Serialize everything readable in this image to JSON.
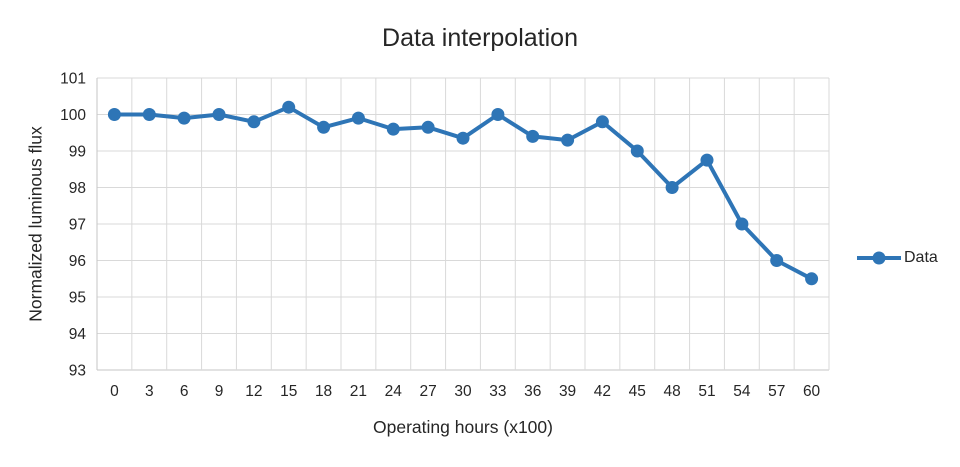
{
  "chart_data": {
    "type": "line",
    "title": "Data interpolation",
    "xlabel": "Operating hours (x100)",
    "ylabel": "Normalized luminous flux",
    "categories": [
      0,
      3,
      6,
      9,
      12,
      15,
      18,
      21,
      24,
      27,
      30,
      33,
      36,
      39,
      42,
      45,
      48,
      51,
      54,
      57,
      60
    ],
    "series": [
      {
        "name": "Data",
        "values": [
          100,
          100,
          99.9,
          100,
          99.8,
          100.2,
          99.65,
          99.9,
          99.6,
          99.65,
          99.35,
          100,
          99.4,
          99.3,
          99.8,
          99,
          98,
          98.75,
          97,
          96,
          95.5
        ]
      }
    ],
    "ylim": [
      93,
      101
    ],
    "ytick_step": 1,
    "grid": true,
    "legend_position": "right",
    "colors": {
      "series_line": "#2E75B6",
      "gridline": "#D9D9D9",
      "axis_line": "#C6C6C6",
      "text": "#262626",
      "background": "#FFFFFF"
    }
  }
}
